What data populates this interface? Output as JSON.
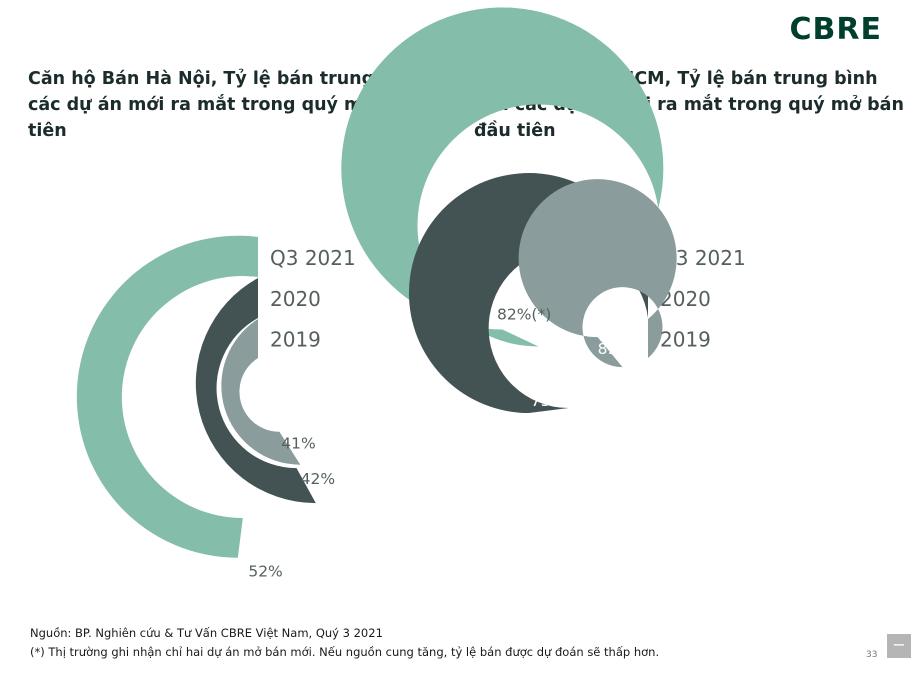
{
  "logo": "CBRE",
  "colors": {
    "q3_2021": "#84bdaa",
    "y2020": "#435252",
    "y2019": "#8a9d9c",
    "text_gray": "#555f5f",
    "title": "#1c2b2b",
    "brand": "#003f2d"
  },
  "chart_data": [
    {
      "type": "radial-bar",
      "title": "Căn hộ Bán Hà Nội, Tỷ lệ bán trung bình của các dự án mới ra mắt trong quý mở bán đầu tiên",
      "series": [
        {
          "name": "Q3 2021",
          "value": 52,
          "label": "52%"
        },
        {
          "name": "2020",
          "value": 42,
          "label": "42%"
        },
        {
          "name": "2019",
          "value": 41,
          "label": "41%"
        }
      ]
    },
    {
      "type": "radial-bar",
      "title": "Căn hộ Bán TP.HCM, Tỷ lệ bán trung bình của các dự án mới ra mắt trong quý mở bán đầu tiên",
      "series": [
        {
          "name": "Q3 2021",
          "value": 82,
          "label": "82%(*)"
        },
        {
          "name": "2020",
          "value": 73,
          "label": "73%"
        },
        {
          "name": "2019",
          "value": 89,
          "label": "89%"
        }
      ]
    }
  ],
  "footer": {
    "source": "Nguồn: BP. Nghiên cứu & Tư Vấn CBRE Việt Nam, Quý 3 2021",
    "note": "(*) Thị trường ghi nhận chỉ hai dự án mở bán mới. Nếu nguồn cung tăng, tỷ lệ bán được dự đoán sẽ thấp hơn."
  },
  "page_number": "33",
  "minus_button": "−"
}
